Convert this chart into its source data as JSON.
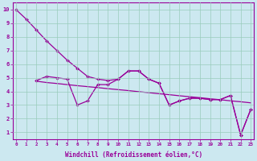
{
  "line_main_x": [
    0,
    1,
    2,
    3,
    4,
    5,
    6,
    7,
    8,
    9,
    10,
    11,
    12,
    13,
    14,
    15,
    16,
    17,
    18,
    19,
    20,
    21,
    22,
    23
  ],
  "line_main_y": [
    10.0,
    9.3,
    8.5,
    7.7,
    7.0,
    6.3,
    5.7,
    5.1,
    4.9,
    4.8,
    4.9,
    5.5,
    5.5,
    4.9,
    4.6,
    3.0,
    3.3,
    3.5,
    3.5,
    3.4,
    3.4,
    3.7,
    0.8,
    2.7
  ],
  "line_zigzag_x": [
    2,
    3,
    4,
    5,
    6,
    7,
    8,
    9,
    10,
    11,
    12,
    13,
    14,
    15,
    16,
    17,
    18,
    19,
    20,
    21,
    22,
    23
  ],
  "line_zigzag_y": [
    4.8,
    5.1,
    5.0,
    4.9,
    3.0,
    3.3,
    4.5,
    4.5,
    4.9,
    5.5,
    5.5,
    4.9,
    4.6,
    3.0,
    3.3,
    3.5,
    3.5,
    3.4,
    3.4,
    3.7,
    0.8,
    2.7
  ],
  "line_trend_x": [
    2,
    3,
    4,
    5,
    6,
    7,
    8,
    9,
    10,
    11,
    12,
    13,
    14,
    15,
    16,
    17,
    18,
    19,
    20,
    21,
    22,
    23
  ],
  "line_trend_y": [
    4.75,
    4.65,
    4.58,
    4.5,
    4.42,
    4.35,
    4.28,
    4.2,
    4.13,
    4.06,
    3.98,
    3.91,
    3.83,
    3.76,
    3.68,
    3.61,
    3.54,
    3.46,
    3.39,
    3.31,
    3.24,
    3.16
  ],
  "xlim": [
    0,
    23
  ],
  "ylim": [
    0.5,
    10.5
  ],
  "xticks": [
    0,
    1,
    2,
    3,
    4,
    5,
    6,
    7,
    8,
    9,
    10,
    11,
    12,
    13,
    14,
    15,
    16,
    17,
    18,
    19,
    20,
    21,
    22,
    23
  ],
  "yticks": [
    1,
    2,
    3,
    4,
    5,
    6,
    7,
    8,
    9,
    10
  ],
  "xlabel": "Windchill (Refroidissement éolien,°C)",
  "line_color": "#990099",
  "bg_color": "#cce8f0",
  "grid_color": "#99ccbb"
}
